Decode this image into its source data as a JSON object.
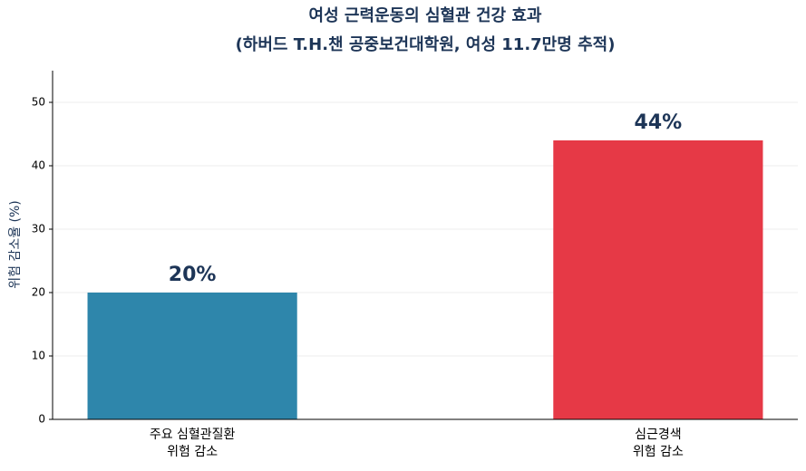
{
  "chart_data": {
    "type": "bar",
    "title": "여성 근력운동의 심혈관 건강 효과",
    "subtitle": "(하버드 T.H.챈 공중보건대학원, 여성 11.7만명 추적)",
    "y_label": "위험 감소율 (%)",
    "categories": [
      [
        "주요 심혈관질환",
        "위험 감소"
      ],
      [
        "심근경색",
        "위험 감소"
      ]
    ],
    "values": [
      20,
      44
    ],
    "value_labels": [
      "20%",
      "44%"
    ],
    "colors": [
      "#2e86ab",
      "#e63946"
    ],
    "ylim": [
      0,
      55
    ],
    "yticks": [
      0,
      10,
      20,
      30,
      40,
      50
    ],
    "grid": true
  }
}
